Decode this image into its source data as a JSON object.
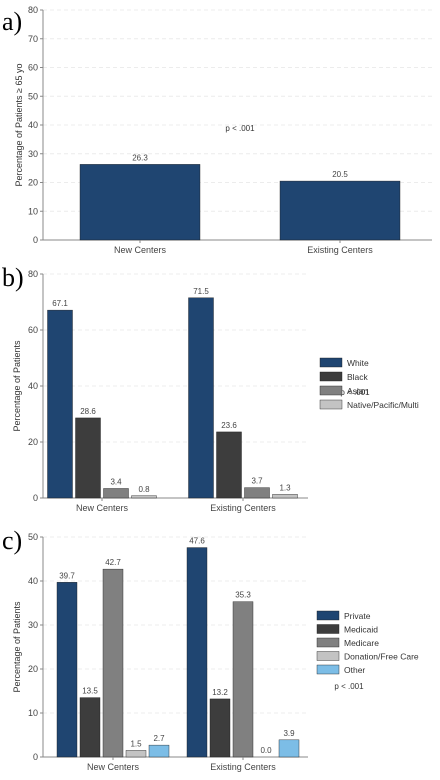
{
  "chart_data": [
    {
      "panel": "a)",
      "type": "bar",
      "categories": [
        "New Centers",
        "Existing Centers"
      ],
      "series": [
        {
          "values": [
            26.3,
            20.5
          ],
          "color": "#1f4571"
        }
      ],
      "ylabel": "Percentage of Patients ≥ 65 yo",
      "ylim": [
        0,
        80
      ],
      "yticks": [
        0,
        10,
        20,
        30,
        40,
        50,
        60,
        70,
        80
      ],
      "annotation": "p < .001",
      "grid": true
    },
    {
      "panel": "b)",
      "type": "bar",
      "categories": [
        "New Centers",
        "Existing Centers"
      ],
      "series": [
        {
          "name": "White",
          "values": [
            67.1,
            71.5
          ],
          "color": "#1f4571"
        },
        {
          "name": "Black",
          "values": [
            28.6,
            23.6
          ],
          "color": "#3d3d3d"
        },
        {
          "name": "Asian",
          "values": [
            3.4,
            3.7
          ],
          "color": "#808080"
        },
        {
          "name": "Native/Pacific/Multi",
          "values": [
            0.8,
            1.3
          ],
          "color": "#c3c3c3"
        }
      ],
      "ylabel": "Percentage of Patients",
      "ylim": [
        0,
        80
      ],
      "yticks": [
        0,
        20,
        40,
        60,
        80
      ],
      "annotation": "p < .001",
      "legend": "right",
      "grid": true
    },
    {
      "panel": "c)",
      "type": "bar",
      "categories": [
        "New Centers",
        "Existing Centers"
      ],
      "series": [
        {
          "name": "Private",
          "values": [
            39.7,
            47.6
          ],
          "color": "#1f4571"
        },
        {
          "name": "Medicaid",
          "values": [
            13.5,
            13.2
          ],
          "color": "#3d3d3d"
        },
        {
          "name": "Medicare",
          "values": [
            42.7,
            35.3
          ],
          "color": "#808080"
        },
        {
          "name": "Donation/Free Care",
          "values": [
            1.5,
            0.0
          ],
          "color": "#c3c3c3"
        },
        {
          "name": "Other",
          "values": [
            2.7,
            3.9
          ],
          "color": "#7cbde6"
        }
      ],
      "value_labels": [
        [
          "39.7",
          "13.5",
          "42.7",
          "1.5",
          "2.7"
        ],
        [
          "47.6",
          "13.2",
          "35.3",
          "0.0",
          "3.9"
        ]
      ],
      "ylabel": "Percentage of Patients",
      "ylim": [
        0,
        50
      ],
      "yticks": [
        0,
        10,
        20,
        30,
        40,
        50
      ],
      "annotation": "p < .001",
      "legend": "right",
      "grid": true
    }
  ]
}
